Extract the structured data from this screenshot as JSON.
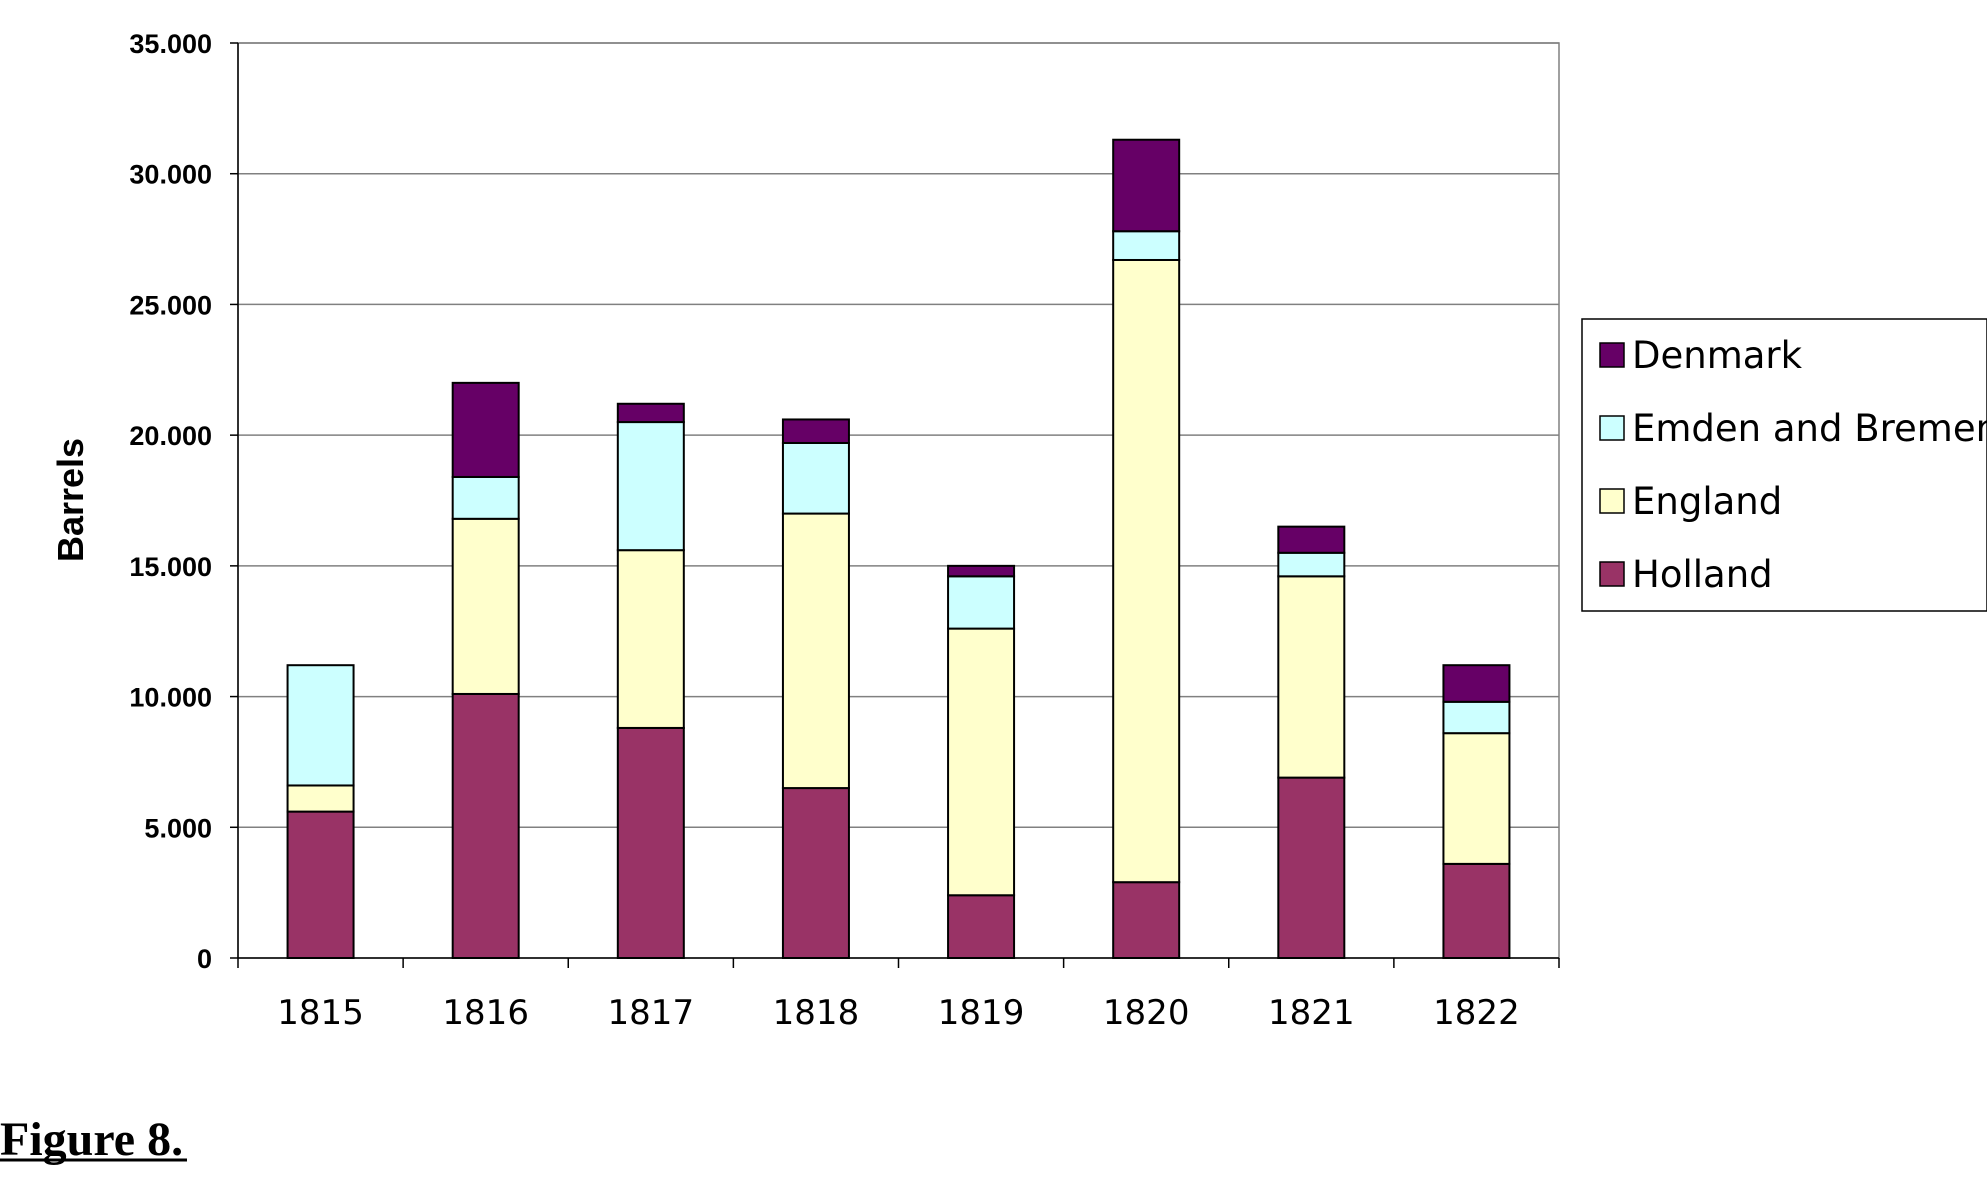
{
  "chart_data": {
    "type": "bar",
    "stacked": true,
    "categories": [
      "1815",
      "1816",
      "1817",
      "1818",
      "1819",
      "1820",
      "1821",
      "1822"
    ],
    "series": [
      {
        "name": "Holland",
        "color": "#993366",
        "values": [
          5600,
          10100,
          8800,
          6500,
          2400,
          2900,
          6900,
          3600
        ]
      },
      {
        "name": "England",
        "color": "#FFFFCC",
        "values": [
          1000,
          6700,
          6800,
          10500,
          10200,
          23800,
          7700,
          5000
        ]
      },
      {
        "name": "Emden and Bremen",
        "color": "#CCFFFF",
        "values": [
          4600,
          1600,
          4900,
          2700,
          2000,
          1100,
          900,
          1200
        ]
      },
      {
        "name": "Denmark",
        "color": "#660066",
        "values": [
          0,
          3600,
          700,
          900,
          400,
          3500,
          1000,
          1400
        ]
      }
    ],
    "legend_order": [
      "Denmark",
      "Emden and Bremen",
      "England",
      "Holland"
    ],
    "ylabel": "Barrels",
    "xlabel": "",
    "ylim": [
      0,
      35000
    ],
    "yticks": [
      0,
      5000,
      10000,
      15000,
      20000,
      25000,
      30000,
      35000
    ],
    "ytick_labels": [
      "0",
      "5.000",
      "10.000",
      "15.000",
      "20.000",
      "25.000",
      "30.000",
      "35.000"
    ],
    "grid": true,
    "legend_position": "right"
  },
  "caption": "Figure 8."
}
